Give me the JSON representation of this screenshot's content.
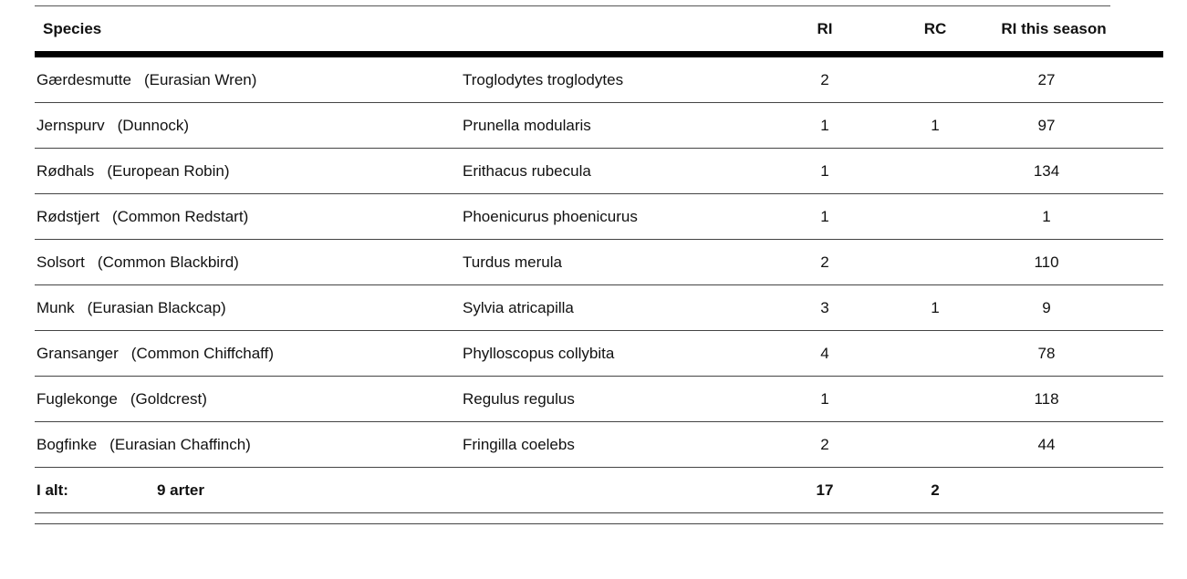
{
  "table": {
    "headers": {
      "species": "Species",
      "latin": "",
      "ri": "RI",
      "rc": "RC",
      "season": "RI this season"
    },
    "rows": [
      {
        "danish": "Gærdesmutte",
        "english": "(Eurasian Wren)",
        "latin": "Troglodytes troglodytes",
        "ri": "2",
        "rc": "",
        "season": "27"
      },
      {
        "danish": "Jernspurv",
        "english": "(Dunnock)",
        "latin": "Prunella modularis",
        "ri": "1",
        "rc": "1",
        "season": "97"
      },
      {
        "danish": "Rødhals",
        "english": "(European Robin)",
        "latin": "Erithacus rubecula",
        "ri": "1",
        "rc": "",
        "season": "134"
      },
      {
        "danish": "Rødstjert",
        "english": "(Common Redstart)",
        "latin": "Phoenicurus phoenicurus",
        "ri": "1",
        "rc": "",
        "season": "1"
      },
      {
        "danish": "Solsort",
        "english": "(Common Blackbird)",
        "latin": "Turdus merula",
        "ri": "2",
        "rc": "",
        "season": "110"
      },
      {
        "danish": "Munk",
        "english": "(Eurasian Blackcap)",
        "latin": "Sylvia atricapilla",
        "ri": "3",
        "rc": "1",
        "season": "9"
      },
      {
        "danish": "Gransanger",
        "english": "(Common Chiffchaff)",
        "latin": "Phylloscopus collybita",
        "ri": "4",
        "rc": "",
        "season": "78"
      },
      {
        "danish": "Fuglekonge",
        "english": "(Goldcrest)",
        "latin": "Regulus regulus",
        "ri": "1",
        "rc": "",
        "season": "118"
      },
      {
        "danish": "Bogfinke",
        "english": "(Eurasian Chaffinch)",
        "latin": "Fringilla coelebs",
        "ri": "2",
        "rc": "",
        "season": "44"
      }
    ],
    "total": {
      "label": "I alt:",
      "count": "9 arter",
      "ri": "17",
      "rc": "2",
      "season": ""
    }
  }
}
